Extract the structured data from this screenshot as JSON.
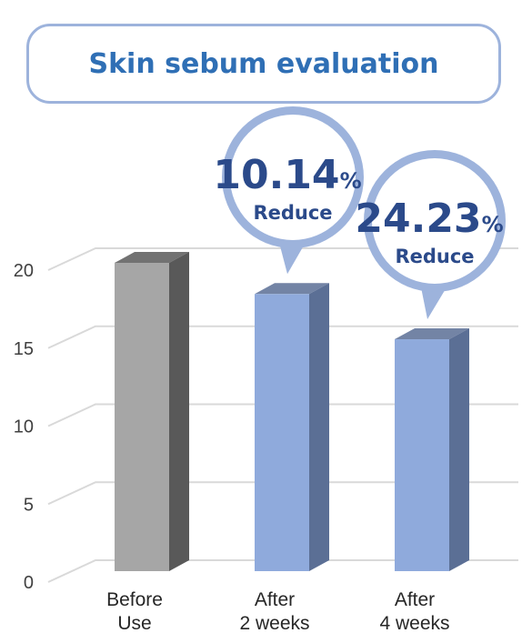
{
  "chart_data": {
    "type": "bar",
    "title": "Skin sebum evaluation",
    "categories": [
      [
        "Before",
        "Use"
      ],
      [
        "After",
        "2 weeks"
      ],
      [
        "After",
        "4 weeks"
      ]
    ],
    "values": [
      20,
      18,
      15.1
    ],
    "ylim": [
      0,
      20
    ],
    "yticks": [
      "0",
      "5",
      "10",
      "15",
      "20"
    ],
    "grid": true,
    "bar_colors": [
      "#a6a6a6",
      "#8faadc",
      "#8faadc"
    ],
    "bar_side_colors": [
      "#595959",
      "#5b6f95",
      "#5b6f95"
    ],
    "callouts": [
      {
        "category_index": 1,
        "value": "10.14",
        "unit": "%",
        "label": "Reduce"
      },
      {
        "category_index": 2,
        "value": "24.23",
        "unit": "%",
        "label": "Reduce"
      }
    ]
  }
}
